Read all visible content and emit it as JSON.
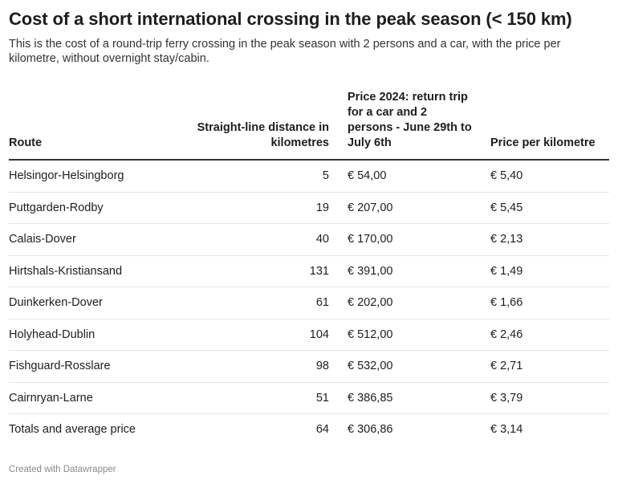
{
  "title": "Cost of a short international crossing in the peak season (< 150 km)",
  "subtitle": "This is the cost of a round-trip ferry crossing in the peak season with 2 persons and a car, with the price per kilometre, without overnight stay/cabin.",
  "footer": "Created with Datawrapper",
  "chart_data": {
    "type": "table",
    "title": "Cost of a short international crossing in the peak season (< 150 km)",
    "columns": [
      "Route",
      "Straight-line distance in kilometres",
      "Price 2024: return trip for a car and 2 persons - June 29th to July 6th",
      "Price per kilometre"
    ],
    "rows": [
      [
        "Helsingor-Helsingborg",
        "5",
        "€ 54,00",
        "€ 5,40"
      ],
      [
        "Puttgarden-Rodby",
        "19",
        "€ 207,00",
        "€ 5,45"
      ],
      [
        "Calais-Dover",
        "40",
        "€ 170,00",
        "€ 2,13"
      ],
      [
        "Hirtshals-Kristiansand",
        "131",
        "€ 391,00",
        "€ 1,49"
      ],
      [
        "Duinkerken-Dover",
        "61",
        "€ 202,00",
        "€ 1,66"
      ],
      [
        "Holyhead-Dublin",
        "104",
        "€ 512,00",
        "€ 2,46"
      ],
      [
        "Fishguard-Rosslare",
        "98",
        "€ 532,00",
        "€ 2,71"
      ],
      [
        "Cairnryan-Larne",
        "51",
        "€ 386,85",
        "€ 3,79"
      ],
      [
        "Totals and average price",
        "64",
        "€ 306,86",
        "€ 3,14"
      ]
    ]
  }
}
